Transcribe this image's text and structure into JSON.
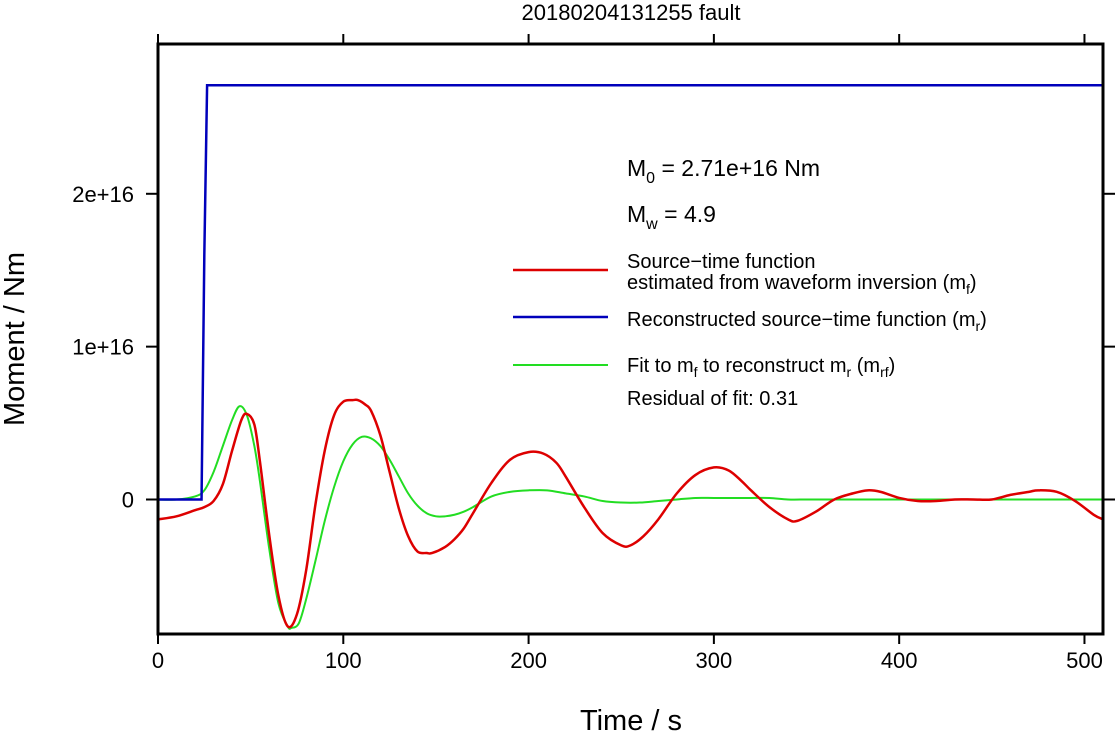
{
  "chart_data": {
    "type": "line",
    "title": "20180204131255 fault",
    "xlabel": "Time / s",
    "ylabel": "Moment / Nm",
    "xlim": [
      0,
      510
    ],
    "ylim": [
      -8800000000000000.0,
      2.98e+16
    ],
    "x_ticks": [
      0,
      100,
      200,
      300,
      400,
      500
    ],
    "x_tick_labels": [
      "0",
      "100",
      "200",
      "300",
      "400",
      "500"
    ],
    "y_ticks": [
      0,
      1e+16,
      2e+16
    ],
    "y_tick_labels": [
      "0",
      "1e+16",
      "2e+16"
    ],
    "grid": false,
    "annotations": {
      "m0": {
        "prefix": "M",
        "sub": "0",
        "text": " = 2.71e+16 Nm"
      },
      "mw": {
        "prefix": "M",
        "sub": "w",
        "text": " = 4.9"
      },
      "residual": "Residual of fit: 0.31"
    },
    "legend": {
      "placement": "right",
      "entries": [
        {
          "line1": "Source−time function",
          "line2_pre": "estimated from waveform inversion (m",
          "line2_sub": "f",
          "line2_post": ")",
          "color": "#dd0000"
        },
        {
          "line1_pre": "Reconstructed source−time function (m",
          "line1_sub": "r",
          "line1_post": ")",
          "color": "#0000bb"
        },
        {
          "p1": "Fit to m",
          "s1": "f",
          "p2": " to reconstruct m",
          "s2": "r",
          "p3": " (m",
          "s3": "rf",
          "p4": ")",
          "color": "#22dd22"
        }
      ]
    },
    "series": [
      {
        "id": "mf",
        "color": "#dd0000",
        "x": [
          0,
          10,
          20,
          25,
          30,
          35,
          40,
          45,
          48,
          52,
          55,
          60,
          65,
          70,
          75,
          80,
          85,
          90,
          95,
          100,
          105,
          108,
          112,
          115,
          120,
          125,
          130,
          135,
          140,
          145,
          148,
          155,
          160,
          165,
          170,
          180,
          190,
          200,
          208,
          215,
          220,
          230,
          240,
          250,
          255,
          262,
          270,
          280,
          290,
          300,
          308,
          315,
          320,
          330,
          340,
          345,
          355,
          365,
          375,
          383,
          390,
          400,
          410,
          420,
          430,
          440,
          450,
          460,
          470,
          475,
          485,
          495,
          505,
          510
        ],
        "y": [
          -1300000000000000.0,
          -1100000000000000.0,
          -700000000000000.0,
          -500000000000000.0,
          -100000000000000.0,
          1000000000000000.0,
          3200000000000000.0,
          5200000000000000.0,
          5600000000000000.0,
          4900000000000000.0,
          2500000000000000.0,
          -2300000000000000.0,
          -6300000000000000.0,
          -8300000000000000.0,
          -7500000000000000.0,
          -4600000000000000.0,
          -300000000000000.0,
          3200000000000000.0,
          5500000000000000.0,
          6400000000000000.0,
          6500000000000000.0,
          6500000000000000.0,
          6200000000000000.0,
          5800000000000000.0,
          4200000000000000.0,
          1800000000000000.0,
          -600000000000000.0,
          -2400000000000000.0,
          -3400000000000000.0,
          -3500000000000000.0,
          -3500000000000000.0,
          -3100000000000000.0,
          -2600000000000000.0,
          -1900000000000000.0,
          -900000000000000.0,
          1100000000000000.0,
          2600000000000000.0,
          3100000000000000.0,
          3000000000000000.0,
          2400000000000000.0,
          1500000000000000.0,
          -500000000000000.0,
          -2200000000000000.0,
          -3000000000000000.0,
          -3000000000000000.0,
          -2400000000000000.0,
          -1300000000000000.0,
          400000000000000.0,
          1600000000000000.0,
          2100000000000000.0,
          1900000000000000.0,
          1200000000000000.0,
          600000000000000.0,
          -500000000000000.0,
          -1300000000000000.0,
          -1400000000000000.0,
          -800000000000000.0,
          0,
          400000000000000.0,
          600000000000000.0,
          500000000000000.0,
          100000000000000.0,
          -100000000000000.0,
          -100000000000000.0,
          0,
          0,
          0,
          300000000000000.0,
          500000000000000.0,
          600000000000000.0,
          500000000000000.0,
          -100000000000000.0,
          -1000000000000000.0,
          -1300000000000000.0
        ]
      },
      {
        "id": "mr",
        "color": "#0000bb",
        "x": [
          0,
          23.5,
          25,
          26.5,
          30,
          510
        ],
        "y": [
          0,
          0,
          1.6e+16,
          2.71e+16,
          2.71e+16,
          2.71e+16
        ]
      },
      {
        "id": "mrf",
        "color": "#22dd22",
        "x": [
          0,
          10,
          20,
          25,
          30,
          35,
          40,
          44,
          48,
          52,
          55,
          60,
          65,
          70,
          72,
          76,
          80,
          85,
          90,
          95,
          100,
          105,
          110,
          115,
          120,
          125,
          130,
          135,
          140,
          145,
          150,
          155,
          160,
          165,
          170,
          180,
          190,
          200,
          210,
          220,
          230,
          240,
          250,
          260,
          270,
          280,
          290,
          300,
          310,
          320,
          330,
          340,
          350,
          360,
          380,
          400,
          450,
          510
        ],
        "y": [
          0,
          0,
          200000000000000.0,
          600000000000000.0,
          1800000000000000.0,
          3500000000000000.0,
          5200000000000000.0,
          6100000000000000.0,
          5500000000000000.0,
          3500000000000000.0,
          1200000000000000.0,
          -3200000000000000.0,
          -6800000000000000.0,
          -8300000000000000.0,
          -8400000000000000.0,
          -8100000000000000.0,
          -6500000000000000.0,
          -4000000000000000.0,
          -1400000000000000.0,
          800000000000000.0,
          2500000000000000.0,
          3600000000000000.0,
          4100000000000000.0,
          4000000000000000.0,
          3500000000000000.0,
          2600000000000000.0,
          1500000000000000.0,
          400000000000000.0,
          -400000000000000.0,
          -900000000000000.0,
          -1100000000000000.0,
          -1100000000000000.0,
          -1000000000000000.0,
          -800000000000000.0,
          -500000000000000.0,
          200000000000000.0,
          500000000000000.0,
          600000000000000.0,
          600000000000000.0,
          400000000000000.0,
          200000000000000.0,
          -100000000000000.0,
          -200000000000000.0,
          -200000000000000.0,
          -100000000000000.0,
          0,
          100000000000000.0,
          100000000000000.0,
          100000000000000.0,
          100000000000000.0,
          100000000000000.0,
          0,
          0,
          0,
          0,
          0,
          0,
          0
        ]
      }
    ]
  }
}
